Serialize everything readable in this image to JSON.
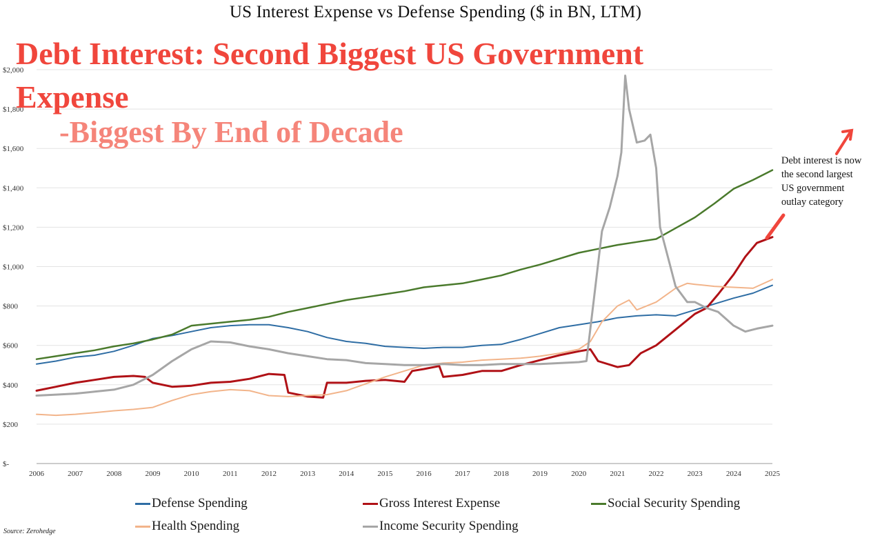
{
  "headline": {
    "title": "Debt Interest: Second Biggest US Government Expense",
    "subtitle": "-Biggest By End of Decade"
  },
  "annotation": {
    "text": "Debt interest is now the second largest US government outlay category",
    "arrow_color": "#f0463c"
  },
  "source": "Source: Zerohedge",
  "chart_data": {
    "type": "line",
    "title": "US Interest Expense vs Defense Spending ($ in BN, LTM)",
    "xlabel": "",
    "ylabel": "",
    "x_range": [
      2006,
      2025
    ],
    "ylim": [
      0,
      2000
    ],
    "y_ticks": [
      0,
      200,
      400,
      600,
      800,
      1000,
      1200,
      1400,
      1600,
      1800,
      2000
    ],
    "y_tick_labels": [
      "$-",
      "$200",
      "$400",
      "$600",
      "$800",
      "$1,000",
      "$1,200",
      "$1,400",
      "$1,600",
      "$1,800",
      "$2,000"
    ],
    "x_tick_labels": [
      "2006",
      "2007",
      "2008",
      "2009",
      "2010",
      "2011",
      "2012",
      "2013",
      "2014",
      "2015",
      "2016",
      "2017",
      "2018",
      "2019",
      "2020",
      "2021",
      "2022",
      "2023",
      "2024",
      "2025"
    ],
    "grid": true,
    "legend_position": "bottom",
    "series": [
      {
        "name": "Defense Spending",
        "color": "#2e6da4",
        "width": 2,
        "points": [
          [
            2006,
            505
          ],
          [
            2006.5,
            520
          ],
          [
            2007,
            540
          ],
          [
            2007.5,
            550
          ],
          [
            2008,
            570
          ],
          [
            2008.5,
            600
          ],
          [
            2009,
            635
          ],
          [
            2009.5,
            650
          ],
          [
            2010,
            670
          ],
          [
            2010.5,
            690
          ],
          [
            2011,
            700
          ],
          [
            2011.5,
            705
          ],
          [
            2012,
            705
          ],
          [
            2012.5,
            690
          ],
          [
            2013,
            670
          ],
          [
            2013.5,
            640
          ],
          [
            2014,
            620
          ],
          [
            2014.5,
            610
          ],
          [
            2015,
            595
          ],
          [
            2015.5,
            590
          ],
          [
            2016,
            585
          ],
          [
            2016.5,
            590
          ],
          [
            2017,
            590
          ],
          [
            2017.5,
            600
          ],
          [
            2018,
            605
          ],
          [
            2018.5,
            630
          ],
          [
            2019,
            660
          ],
          [
            2019.5,
            690
          ],
          [
            2020,
            705
          ],
          [
            2020.5,
            720
          ],
          [
            2021,
            740
          ],
          [
            2021.5,
            750
          ],
          [
            2022,
            755
          ],
          [
            2022.5,
            750
          ],
          [
            2023,
            780
          ],
          [
            2023.5,
            810
          ],
          [
            2024,
            840
          ],
          [
            2024.5,
            865
          ],
          [
            2025,
            905
          ]
        ]
      },
      {
        "name": "Gross Interest Expense",
        "color": "#b01116",
        "width": 3,
        "points": [
          [
            2006,
            370
          ],
          [
            2006.5,
            390
          ],
          [
            2007,
            410
          ],
          [
            2007.5,
            425
          ],
          [
            2008,
            440
          ],
          [
            2008.5,
            445
          ],
          [
            2008.8,
            440
          ],
          [
            2009,
            410
          ],
          [
            2009.5,
            390
          ],
          [
            2010,
            395
          ],
          [
            2010.5,
            410
          ],
          [
            2011,
            415
          ],
          [
            2011.5,
            430
          ],
          [
            2012,
            455
          ],
          [
            2012.4,
            450
          ],
          [
            2012.5,
            360
          ],
          [
            2013,
            340
          ],
          [
            2013.4,
            335
          ],
          [
            2013.5,
            410
          ],
          [
            2014,
            410
          ],
          [
            2014.5,
            420
          ],
          [
            2015,
            425
          ],
          [
            2015.5,
            415
          ],
          [
            2015.7,
            470
          ],
          [
            2016,
            480
          ],
          [
            2016.4,
            495
          ],
          [
            2016.5,
            440
          ],
          [
            2017,
            450
          ],
          [
            2017.5,
            470
          ],
          [
            2018,
            470
          ],
          [
            2018.5,
            500
          ],
          [
            2019,
            525
          ],
          [
            2019.5,
            550
          ],
          [
            2020,
            570
          ],
          [
            2020.3,
            580
          ],
          [
            2020.5,
            520
          ],
          [
            2021,
            490
          ],
          [
            2021.3,
            500
          ],
          [
            2021.6,
            560
          ],
          [
            2022,
            600
          ],
          [
            2022.5,
            680
          ],
          [
            2023,
            760
          ],
          [
            2023.3,
            790
          ],
          [
            2023.6,
            860
          ],
          [
            2024,
            960
          ],
          [
            2024.3,
            1050
          ],
          [
            2024.6,
            1120
          ],
          [
            2025,
            1150
          ]
        ]
      },
      {
        "name": "Social Security Spending",
        "color": "#4a7a2c",
        "width": 2.5,
        "points": [
          [
            2006,
            530
          ],
          [
            2006.5,
            545
          ],
          [
            2007,
            560
          ],
          [
            2007.5,
            575
          ],
          [
            2008,
            595
          ],
          [
            2008.5,
            610
          ],
          [
            2009,
            630
          ],
          [
            2009.5,
            655
          ],
          [
            2010,
            700
          ],
          [
            2010.5,
            710
          ],
          [
            2011,
            720
          ],
          [
            2011.5,
            730
          ],
          [
            2012,
            745
          ],
          [
            2012.5,
            770
          ],
          [
            2013,
            790
          ],
          [
            2013.5,
            810
          ],
          [
            2014,
            830
          ],
          [
            2014.5,
            845
          ],
          [
            2015,
            860
          ],
          [
            2015.5,
            875
          ],
          [
            2016,
            895
          ],
          [
            2016.5,
            905
          ],
          [
            2017,
            915
          ],
          [
            2017.5,
            935
          ],
          [
            2018,
            955
          ],
          [
            2018.5,
            985
          ],
          [
            2019,
            1010
          ],
          [
            2019.5,
            1040
          ],
          [
            2020,
            1070
          ],
          [
            2020.5,
            1090
          ],
          [
            2021,
            1110
          ],
          [
            2021.5,
            1125
          ],
          [
            2022,
            1140
          ],
          [
            2022.5,
            1195
          ],
          [
            2023,
            1250
          ],
          [
            2023.5,
            1320
          ],
          [
            2024,
            1395
          ],
          [
            2024.5,
            1440
          ],
          [
            2025,
            1490
          ]
        ]
      },
      {
        "name": "Health Spending",
        "color": "#f2b48a",
        "width": 2,
        "points": [
          [
            2006,
            250
          ],
          [
            2006.5,
            245
          ],
          [
            2007,
            250
          ],
          [
            2007.5,
            258
          ],
          [
            2008,
            268
          ],
          [
            2008.5,
            275
          ],
          [
            2009,
            285
          ],
          [
            2009.5,
            320
          ],
          [
            2010,
            350
          ],
          [
            2010.5,
            365
          ],
          [
            2011,
            375
          ],
          [
            2011.5,
            370
          ],
          [
            2012,
            345
          ],
          [
            2012.5,
            340
          ],
          [
            2013,
            345
          ],
          [
            2013.5,
            350
          ],
          [
            2014,
            370
          ],
          [
            2014.5,
            405
          ],
          [
            2015,
            440
          ],
          [
            2015.5,
            470
          ],
          [
            2016,
            500
          ],
          [
            2016.5,
            510
          ],
          [
            2017,
            515
          ],
          [
            2017.5,
            525
          ],
          [
            2018,
            530
          ],
          [
            2018.5,
            535
          ],
          [
            2019,
            545
          ],
          [
            2019.5,
            560
          ],
          [
            2020,
            580
          ],
          [
            2020.3,
            620
          ],
          [
            2020.6,
            720
          ],
          [
            2021,
            800
          ],
          [
            2021.3,
            830
          ],
          [
            2021.5,
            780
          ],
          [
            2022,
            820
          ],
          [
            2022.5,
            890
          ],
          [
            2022.8,
            915
          ],
          [
            2023,
            910
          ],
          [
            2023.5,
            900
          ],
          [
            2024,
            895
          ],
          [
            2024.5,
            890
          ],
          [
            2025,
            935
          ]
        ]
      },
      {
        "name": "Income Security Spending",
        "color": "#a6a6a6",
        "width": 3,
        "points": [
          [
            2006,
            345
          ],
          [
            2006.5,
            350
          ],
          [
            2007,
            355
          ],
          [
            2007.5,
            365
          ],
          [
            2008,
            375
          ],
          [
            2008.5,
            400
          ],
          [
            2009,
            450
          ],
          [
            2009.5,
            520
          ],
          [
            2010,
            580
          ],
          [
            2010.5,
            620
          ],
          [
            2011,
            615
          ],
          [
            2011.5,
            595
          ],
          [
            2012,
            580
          ],
          [
            2012.5,
            560
          ],
          [
            2013,
            545
          ],
          [
            2013.5,
            530
          ],
          [
            2014,
            525
          ],
          [
            2014.5,
            510
          ],
          [
            2015,
            505
          ],
          [
            2015.5,
            500
          ],
          [
            2016,
            500
          ],
          [
            2016.5,
            505
          ],
          [
            2017,
            500
          ],
          [
            2017.5,
            500
          ],
          [
            2018,
            505
          ],
          [
            2018.5,
            505
          ],
          [
            2019,
            505
          ],
          [
            2019.5,
            510
          ],
          [
            2020,
            515
          ],
          [
            2020.2,
            520
          ],
          [
            2020.4,
            850
          ],
          [
            2020.6,
            1180
          ],
          [
            2020.8,
            1300
          ],
          [
            2021,
            1460
          ],
          [
            2021.1,
            1580
          ],
          [
            2021.2,
            1970
          ],
          [
            2021.3,
            1800
          ],
          [
            2021.5,
            1630
          ],
          [
            2021.7,
            1640
          ],
          [
            2021.85,
            1670
          ],
          [
            2022,
            1500
          ],
          [
            2022.1,
            1200
          ],
          [
            2022.3,
            1050
          ],
          [
            2022.5,
            900
          ],
          [
            2022.8,
            820
          ],
          [
            2023,
            820
          ],
          [
            2023.3,
            790
          ],
          [
            2023.6,
            770
          ],
          [
            2024,
            700
          ],
          [
            2024.3,
            670
          ],
          [
            2024.6,
            685
          ],
          [
            2025,
            700
          ]
        ]
      }
    ]
  }
}
